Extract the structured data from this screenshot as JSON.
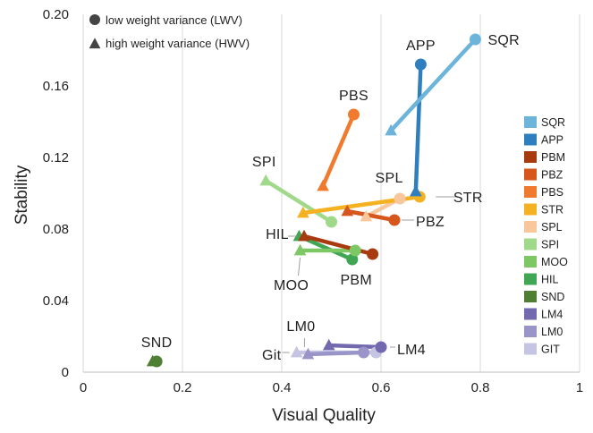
{
  "chart_data": {
    "type": "scatter",
    "xlabel": "Visual Quality",
    "ylabel": "Stability",
    "xlim": [
      0,
      1
    ],
    "ylim": [
      0,
      0.2
    ],
    "xticks": [
      "0",
      "0.2",
      "0.4",
      "0.6",
      "0.8",
      "1"
    ],
    "yticks": [
      "0",
      "0.04",
      "0.08",
      "0.12",
      "0.16",
      "0.20"
    ],
    "grid": "vertical",
    "marker_legend": [
      {
        "shape": "circle",
        "label": "low weight variance (LWV)"
      },
      {
        "shape": "triangle",
        "label": "high weight variance (HWV)"
      }
    ],
    "legend_position": "right",
    "series": [
      {
        "name": "SQR",
        "color": "#6CB4DA",
        "lwv": [
          0.79,
          0.186
        ],
        "hwv": [
          0.62,
          0.135
        ]
      },
      {
        "name": "APP",
        "color": "#2F7FBF",
        "lwv": [
          0.68,
          0.172
        ],
        "hwv": [
          0.67,
          0.101
        ]
      },
      {
        "name": "PBM",
        "color": "#A83A10",
        "lwv": [
          0.583,
          0.066
        ],
        "hwv": [
          0.445,
          0.076
        ]
      },
      {
        "name": "PBZ",
        "color": "#D6561C",
        "lwv": [
          0.627,
          0.085
        ],
        "hwv": [
          0.532,
          0.09
        ]
      },
      {
        "name": "PBS",
        "color": "#F07A2E",
        "lwv": [
          0.545,
          0.144
        ],
        "hwv": [
          0.483,
          0.104
        ]
      },
      {
        "name": "STR",
        "color": "#F4B223",
        "lwv": [
          0.678,
          0.098
        ],
        "hwv": [
          0.443,
          0.089
        ]
      },
      {
        "name": "SPL",
        "color": "#F9C79C",
        "lwv": [
          0.638,
          0.097
        ],
        "hwv": [
          0.57,
          0.087
        ]
      },
      {
        "name": "SPI",
        "color": "#A1D98A",
        "lwv": [
          0.5,
          0.084
        ],
        "hwv": [
          0.368,
          0.107
        ]
      },
      {
        "name": "MOO",
        "color": "#7DC765",
        "lwv": [
          0.548,
          0.068
        ],
        "hwv": [
          0.437,
          0.068
        ]
      },
      {
        "name": "HIL",
        "color": "#3FA653",
        "lwv": [
          0.542,
          0.063
        ],
        "hwv": [
          0.435,
          0.076
        ]
      },
      {
        "name": "SND",
        "color": "#4F7F33",
        "lwv": [
          0.148,
          0.006
        ],
        "hwv": [
          0.14,
          0.006
        ]
      },
      {
        "name": "LM4",
        "color": "#7269AF",
        "lwv": [
          0.6,
          0.014
        ],
        "hwv": [
          0.495,
          0.015
        ]
      },
      {
        "name": "LM0",
        "color": "#9A95C8",
        "lwv": [
          0.565,
          0.011
        ],
        "hwv": [
          0.453,
          0.01
        ]
      },
      {
        "name": "GIT",
        "color": "#C5C4E2",
        "lwv": [
          0.59,
          0.011
        ],
        "hwv": [
          0.43,
          0.011
        ]
      }
    ],
    "callouts": [
      {
        "text": "SQR",
        "x": 0.79,
        "y": 0.186
      },
      {
        "text": "APP",
        "x": 0.68,
        "y": 0.172
      },
      {
        "text": "PBS",
        "x": 0.545,
        "y": 0.144
      },
      {
        "text": "SPI",
        "x": 0.368,
        "y": 0.107
      },
      {
        "text": "SPL",
        "x": 0.638,
        "y": 0.097
      },
      {
        "text": "STR",
        "x": 0.678,
        "y": 0.098
      },
      {
        "text": "PBZ",
        "x": 0.627,
        "y": 0.085
      },
      {
        "text": "HIL",
        "x": 0.445,
        "y": 0.076
      },
      {
        "text": "MOO",
        "x": 0.437,
        "y": 0.068
      },
      {
        "text": "PBM",
        "x": 0.583,
        "y": 0.066
      },
      {
        "text": "LM0",
        "x": 0.453,
        "y": 0.01
      },
      {
        "text": "LM4",
        "x": 0.6,
        "y": 0.014
      },
      {
        "text": "Git",
        "x": 0.43,
        "y": 0.011
      },
      {
        "text": "SND",
        "x": 0.148,
        "y": 0.006
      }
    ]
  }
}
